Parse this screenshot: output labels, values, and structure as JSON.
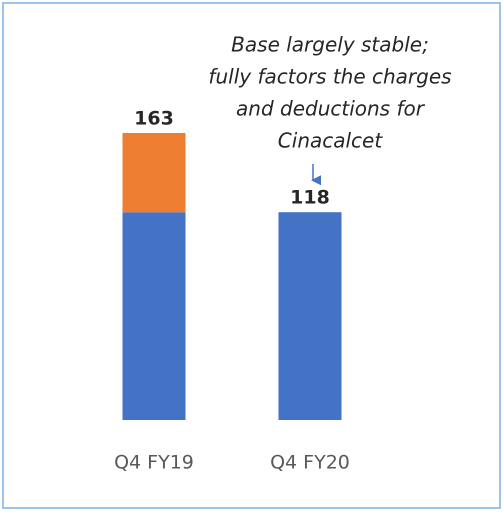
{
  "chart_data": {
    "type": "stacked-bar",
    "categories": [
      "Q4 FY19",
      "Q4 FY20"
    ],
    "series": [
      {
        "color": "#4472c4",
        "values": [
          118,
          118
        ]
      },
      {
        "color": "#ed7d31",
        "values": [
          45,
          null
        ]
      }
    ],
    "totals": [
      163,
      118
    ],
    "annotation": [
      "Base largely stable;",
      "fully factors the charges",
      "and deductions for",
      "Cinacalcet"
    ]
  }
}
